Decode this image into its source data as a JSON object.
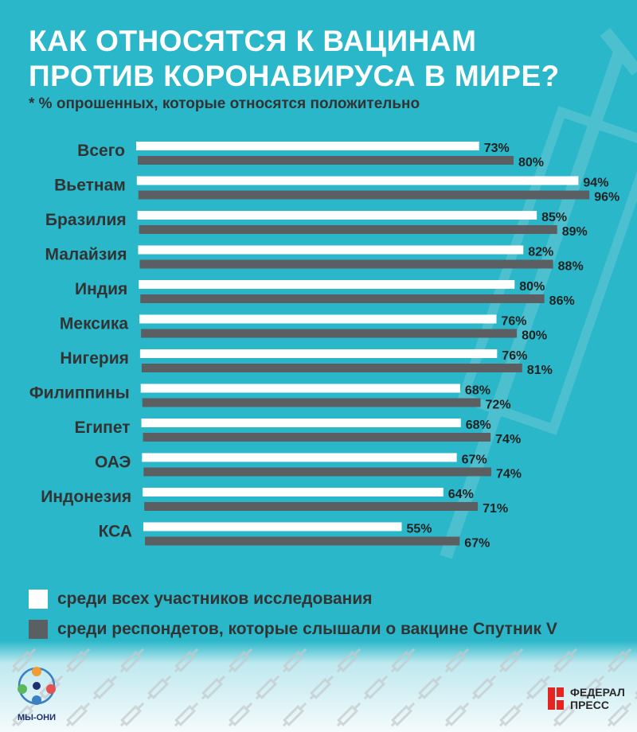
{
  "title": "КАК ОТНОСЯТСЯ К ВАЦИНАМ ПРОТИВ КОРОНАВИРУСА В МИРЕ?",
  "subtitle": "* % опрошенных, которые относятся положительно",
  "colors": {
    "background": "#29b7c9",
    "series_all": "#ffffff",
    "series_sputnik": "#5c5f62",
    "text_dark": "#333333"
  },
  "chart_data": {
    "type": "bar",
    "orientation": "horizontal",
    "categories": [
      "Всего",
      "Вьетнам",
      "Бразилия",
      "Малайзия",
      "Индия",
      "Мексика",
      "Нигерия",
      "Филиппины",
      "Египет",
      "ОАЭ",
      "Индонезия",
      "КСА"
    ],
    "series": [
      {
        "name": "среди всех участников исследования",
        "values": [
          73,
          94,
          85,
          82,
          80,
          76,
          76,
          68,
          68,
          67,
          64,
          55
        ],
        "labels": [
          "73%",
          "94%",
          "85%",
          "82%",
          "80%",
          "76%",
          "76%",
          "68%",
          "68%",
          "67%",
          "64%",
          "55%"
        ],
        "color": "#ffffff"
      },
      {
        "name": "среди респондетов, которые слышали о вакцине Спутник V",
        "values": [
          80,
          96,
          89,
          88,
          86,
          80,
          81,
          72,
          74,
          74,
          71,
          67
        ],
        "labels": [
          "80%",
          "96%",
          "89%",
          "88%",
          "86%",
          "80%",
          "81%",
          "72%",
          "74%",
          "74%",
          "71%",
          "67%"
        ],
        "color": "#5c5f62"
      }
    ],
    "xlim": [
      0,
      100
    ],
    "grid": false,
    "legend": "bottom"
  },
  "logos": {
    "left": "МЫ-ОНИ",
    "right_line1": "ФЕДЕРАЛ",
    "right_line2": "ПРЕСС"
  }
}
